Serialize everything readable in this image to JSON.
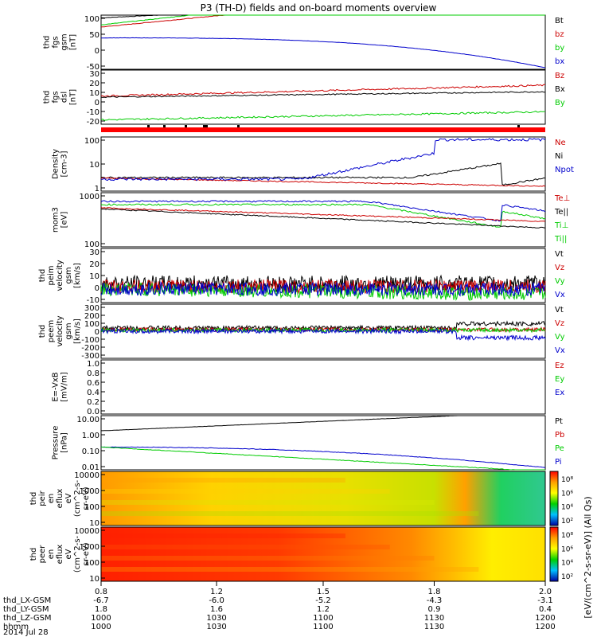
{
  "chart_data": {
    "type": "line",
    "title": "P3 (TH-D) fields and on-board moments overview",
    "panels": [
      {
        "id": "fgs_gsm",
        "ylabel": [
          "thd",
          "fgs",
          "gsm",
          "[nT]"
        ],
        "yticks": [
          "100",
          "50",
          "0",
          "-50"
        ],
        "legend": [
          {
            "name": "Bt",
            "color": "#000000"
          },
          {
            "name": "bz",
            "color": "#cc0000"
          },
          {
            "name": "by",
            "color": "#00cc00"
          },
          {
            "name": "bx",
            "color": "#0000cc"
          }
        ]
      },
      {
        "id": "fgs_dsl",
        "ylabel": [
          "thd",
          "fgs",
          "dsl",
          "[nT]"
        ],
        "yticks": [
          "30",
          "20",
          "10",
          "0",
          "-10",
          "-20"
        ],
        "legend": [
          {
            "name": "Bz",
            "color": "#cc0000"
          },
          {
            "name": "Bx",
            "color": "#000000"
          },
          {
            "name": "By",
            "color": "#00cc00"
          }
        ]
      },
      {
        "id": "density",
        "ylabel": [
          "Density",
          "[cm-3]"
        ],
        "yticks": [
          "100",
          "10",
          "1"
        ],
        "legend": [
          {
            "name": "Ne",
            "color": "#cc0000"
          },
          {
            "name": "Ni",
            "color": "#000000"
          },
          {
            "name": "Npot",
            "color": "#0000cc"
          }
        ]
      },
      {
        "id": "temperature",
        "ylabel": [
          "mom3",
          "[eV]"
        ],
        "yticks": [
          "1000",
          "100"
        ],
        "legend": [
          {
            "name": "Te⊥",
            "color": "#cc0000"
          },
          {
            "name": "Te||",
            "color": "#000000"
          },
          {
            "name": "Ti⊥",
            "color": "#00cc00"
          },
          {
            "name": "Ti||",
            "color": "#00cc00"
          }
        ]
      },
      {
        "id": "peim_velocity",
        "ylabel": [
          "thd",
          "peim",
          "velocity",
          "gsm",
          "[km/s]"
        ],
        "yticks": [
          "30",
          "20",
          "10",
          "0",
          "-10"
        ],
        "legend": [
          {
            "name": "Vt",
            "color": "#000000"
          },
          {
            "name": "Vz",
            "color": "#cc0000"
          },
          {
            "name": "Vy",
            "color": "#00cc00"
          },
          {
            "name": "Vx",
            "color": "#0000cc"
          }
        ]
      },
      {
        "id": "peem_velocity",
        "ylabel": [
          "thd",
          "peem",
          "velocity",
          "gsm",
          "[km/s]"
        ],
        "yticks": [
          "300",
          "200",
          "100",
          "0",
          "-100",
          "-200",
          "-300"
        ],
        "legend": [
          {
            "name": "Vt",
            "color": "#000000"
          },
          {
            "name": "Vz",
            "color": "#cc0000"
          },
          {
            "name": "Vy",
            "color": "#00cc00"
          },
          {
            "name": "Vx",
            "color": "#0000cc"
          }
        ]
      },
      {
        "id": "efield",
        "ylabel": [
          "E=-VxB",
          "[mV/m]"
        ],
        "yticks": [
          "1.0",
          "0.8",
          "0.6",
          "0.4",
          "0.2",
          "0.0"
        ],
        "legend": [
          {
            "name": "Ez",
            "color": "#cc0000"
          },
          {
            "name": "Ey",
            "color": "#00cc00"
          },
          {
            "name": "Ex",
            "color": "#0000cc"
          }
        ]
      },
      {
        "id": "pressure",
        "ylabel": [
          "Pressure",
          "[nPa]"
        ],
        "yticks": [
          "10.00",
          "1.00",
          "0.10",
          "0.01"
        ],
        "legend": [
          {
            "name": "Pt",
            "color": "#000000"
          },
          {
            "name": "Pb",
            "color": "#cc0000"
          },
          {
            "name": "Pe",
            "color": "#00cc00"
          },
          {
            "name": "Pi",
            "color": "#0000cc"
          }
        ]
      },
      {
        "id": "peir_eflux",
        "ylabel": [
          "thd",
          "peir",
          "en",
          "eflux",
          "eV",
          "(cm^2-s-",
          "sr-eV)"
        ],
        "yticks": [
          "10000",
          "1000",
          "100",
          "10"
        ],
        "colorbar_ticks": [
          "10^8",
          "10^6",
          "10^4",
          "10^2"
        ]
      },
      {
        "id": "peer_eflux",
        "ylabel": [
          "thd",
          "peer",
          "en",
          "eflux",
          "eV",
          "(cm^2-s-",
          "sr-eV)"
        ],
        "yticks": [
          "10000",
          "1000",
          "100",
          "10"
        ],
        "colorbar_ticks": [
          "10^8",
          "10^6",
          "10^4",
          "10^2"
        ]
      }
    ],
    "colorbar_label": "[eV/(cm^2-s-sr-eV)] (All Qs)",
    "xaxis": {
      "rows": [
        {
          "label": "thd_LX-GSM",
          "values": [
            "-6.7",
            "-6.0",
            "-5.2",
            "-4.3",
            "-3.1"
          ]
        },
        {
          "label": "thd_LY-GSM",
          "values": [
            "1.8",
            "1.6",
            "1.2",
            "0.9",
            "0.4"
          ]
        },
        {
          "label": "thd_LZ-GSM",
          "values": [
            "1000",
            "1030",
            "1100",
            "1130",
            "1200"
          ]
        },
        {
          "label": "hhmm",
          "values": [
            "1000",
            "1030",
            "1100",
            "1130",
            "1200"
          ]
        }
      ],
      "top_ticks": [
        "0.8",
        "1.2",
        "1.5",
        "1.8",
        "2.0"
      ],
      "date": "2014 Jul 28"
    }
  }
}
